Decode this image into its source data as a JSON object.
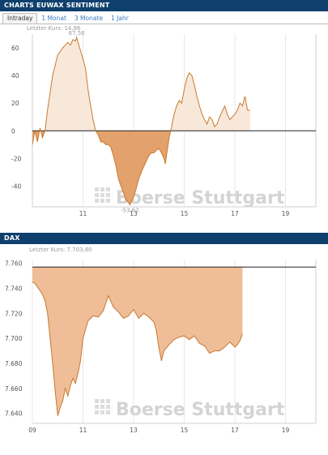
{
  "panels": {
    "sentiment": {
      "title": "CHARTS EUWAX SENTIMENT"
    },
    "dax": {
      "title": "DAX"
    }
  },
  "tabs": [
    {
      "label": "Intraday",
      "active": true
    },
    {
      "label": "1 Monat",
      "active": false
    },
    {
      "label": "3 Monate",
      "active": false
    },
    {
      "label": "1 Jahr",
      "active": false
    }
  ],
  "watermark": "Boerse Stuttgart",
  "chart_data": [
    {
      "type": "area",
      "last_price_label": "Letzter Kurs: 14,86",
      "x_ticks": [
        "11",
        "13",
        "15",
        "17",
        "19"
      ],
      "y_ticks": [
        "60",
        "40",
        "20",
        "0",
        "-20",
        "-40"
      ],
      "xlim": [
        9.0,
        20.2
      ],
      "ylim": [
        -55,
        70
      ],
      "baseline": 0,
      "annotations": [
        {
          "text": "67,56",
          "x": 10.75,
          "y": 67.56
        },
        {
          "text": "-53,62",
          "x": 12.85,
          "y": -53.62
        }
      ],
      "colors": {
        "line": "#c87a2f",
        "positive_fill": "#f8e8da",
        "negative_fill": "#e3a26b",
        "baseline": "#222222",
        "grid": "#e8e8e8"
      },
      "series": [
        {
          "x": [
            9.0,
            9.1,
            9.2,
            9.3,
            9.4,
            9.5,
            9.6,
            9.8,
            10.0,
            10.2,
            10.4,
            10.5,
            10.6,
            10.7,
            10.75,
            10.8,
            10.9,
            11.0,
            11.1,
            11.2,
            11.3,
            11.4,
            11.5,
            11.6,
            11.7,
            11.8,
            11.9,
            12.0,
            12.1,
            12.2,
            12.3,
            12.4,
            12.5,
            12.6,
            12.7,
            12.8,
            12.85,
            12.9,
            13.0,
            13.1,
            13.2,
            13.3,
            13.4,
            13.5,
            13.6,
            13.7,
            13.8,
            13.9,
            14.0,
            14.1,
            14.2,
            14.25,
            14.3,
            14.4,
            14.5,
            14.6,
            14.7,
            14.8,
            14.9,
            15.0,
            15.1,
            15.2,
            15.3,
            15.4,
            15.5,
            15.6,
            15.7,
            15.8,
            15.9,
            16.0,
            16.1,
            16.2,
            16.3,
            16.4,
            16.5,
            16.6,
            16.7,
            16.8,
            16.9,
            17.0,
            17.1,
            17.2,
            17.3,
            17.4,
            17.5,
            17.6
          ],
          "y": [
            -10,
            0,
            -8,
            2,
            -5,
            0,
            15,
            40,
            55,
            60,
            64,
            62,
            66,
            65,
            67.56,
            64,
            58,
            52,
            45,
            30,
            18,
            8,
            0,
            -3,
            -8,
            -8,
            -10,
            -10,
            -12,
            -18,
            -25,
            -35,
            -40,
            -45,
            -50,
            -52,
            -53.62,
            -52,
            -48,
            -42,
            -35,
            -30,
            -26,
            -22,
            -18,
            -16,
            -16,
            -14,
            -13,
            -16,
            -20,
            -24,
            -18,
            -5,
            3,
            12,
            18,
            22,
            20,
            30,
            38,
            42,
            40,
            33,
            25,
            18,
            12,
            8,
            5,
            10,
            8,
            3,
            5,
            10,
            14,
            18,
            12,
            8,
            10,
            12,
            15,
            20,
            18,
            25,
            15,
            14.86
          ]
        }
      ]
    },
    {
      "type": "area",
      "last_price_label": "Letzter Kurs: 7.703,80",
      "x_ticks": [
        "09",
        "11",
        "13",
        "15",
        "17",
        "19"
      ],
      "y_ticks": [
        "7.760",
        "7.740",
        "7.720",
        "7.700",
        "7.680",
        "7.660",
        "7.640"
      ],
      "xlim": [
        9.0,
        20.2
      ],
      "ylim": [
        7632,
        7763
      ],
      "reference_line": 7757,
      "colors": {
        "line": "#c87a2f",
        "fill": "#efbd97",
        "reference": "#222222",
        "grid": "#e8e8e8"
      },
      "series": [
        {
          "x": [
            9.0,
            9.1,
            9.2,
            9.3,
            9.4,
            9.5,
            9.6,
            9.7,
            9.8,
            9.9,
            10.0,
            10.1,
            10.2,
            10.3,
            10.4,
            10.5,
            10.6,
            10.7,
            10.8,
            10.9,
            11.0,
            11.2,
            11.4,
            11.6,
            11.8,
            12.0,
            12.2,
            12.4,
            12.6,
            12.8,
            13.0,
            13.2,
            13.4,
            13.6,
            13.8,
            13.9,
            14.0,
            14.1,
            14.2,
            14.4,
            14.6,
            14.8,
            15.0,
            15.2,
            15.4,
            15.6,
            15.8,
            16.0,
            16.2,
            16.4,
            16.6,
            16.8,
            17.0,
            17.1,
            17.2,
            17.3
          ],
          "y": [
            7745,
            7744,
            7741,
            7738,
            7735,
            7730,
            7720,
            7700,
            7680,
            7658,
            7638,
            7645,
            7650,
            7660,
            7654,
            7662,
            7668,
            7664,
            7672,
            7682,
            7700,
            7714,
            7718,
            7717,
            7722,
            7734,
            7725,
            7721,
            7716,
            7718,
            7723,
            7716,
            7720,
            7717,
            7713,
            7706,
            7692,
            7682,
            7690,
            7695,
            7699,
            7701,
            7702,
            7699,
            7702,
            7696,
            7694,
            7688,
            7690,
            7690,
            7693,
            7697,
            7693,
            7695,
            7698,
            7703.8
          ]
        }
      ]
    }
  ]
}
